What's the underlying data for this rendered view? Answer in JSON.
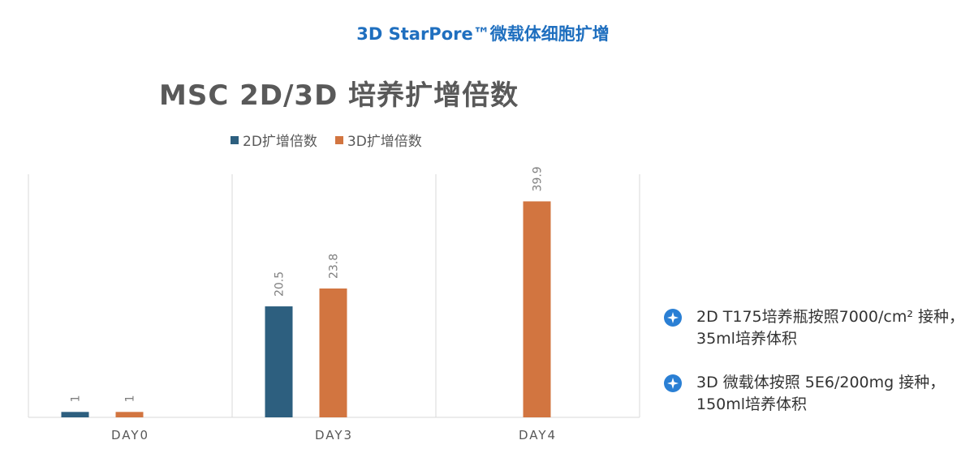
{
  "header": {
    "title": "3D StarPore™微载体细胞扩增"
  },
  "chart_data": {
    "type": "bar",
    "title": "MSC 2D/3D 培养扩增倍数",
    "categories": [
      "DAY0",
      "DAY3",
      "DAY4"
    ],
    "series": [
      {
        "name": "2D扩增倍数",
        "values": [
          1,
          20.5,
          null
        ],
        "labels": [
          "1",
          "20.5",
          ""
        ],
        "color": "#2d5f7f"
      },
      {
        "name": "3D扩增倍数",
        "values": [
          1,
          23.8,
          39.9
        ],
        "labels": [
          "1",
          "23.8",
          "39.9"
        ],
        "color": "#d27540"
      }
    ],
    "ylim": [
      0,
      45
    ],
    "grid": "vertical separators between categories",
    "legend": "top",
    "data_label_orientation": "vertical"
  },
  "notes": [
    {
      "icon": "four-point-star-icon",
      "text": "2D T175培养瓶按照7000/cm² 接种，35ml培养体积"
    },
    {
      "icon": "four-point-star-icon",
      "text": "3D 微载体按照 5E6/200mg 接种，150ml培养体积"
    }
  ],
  "colors": {
    "accent": "#1f6fbf",
    "icon": "#2a7fd4",
    "axis": "#d9d9d9",
    "label": "#595959"
  }
}
